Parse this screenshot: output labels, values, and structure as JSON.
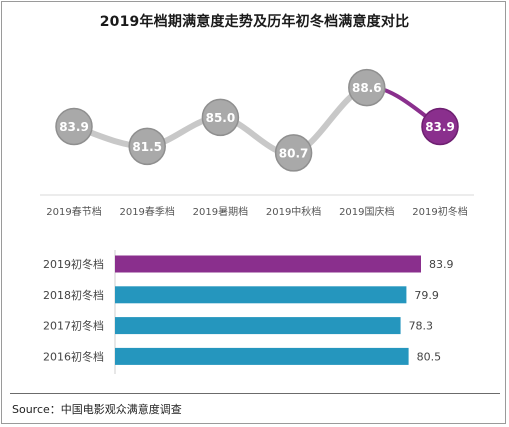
{
  "title": "2019年档期满意度走势及历年初冬档满意度对比",
  "source": "Source：中国电影观众满意度调查",
  "colors": {
    "line": "#c8c8c8",
    "bubble": "#a9a9a9",
    "bubble_highlight": "#8a2f8d",
    "bar_highlight": "#8a2f8d",
    "bar": "#2596be"
  },
  "chart_data": [
    {
      "type": "line",
      "categories": [
        "2019春节档",
        "2019春季档",
        "2019暑期档",
        "2019中秋档",
        "2019国庆档",
        "2019初冬档"
      ],
      "values": [
        83.9,
        81.5,
        85.0,
        80.7,
        88.6,
        83.9
      ],
      "highlight_index": 5,
      "ylim": [
        79,
        90
      ],
      "grid": false
    },
    {
      "type": "bar",
      "orientation": "horizontal",
      "categories": [
        "2019初冬档",
        "2018初冬档",
        "2017初冬档",
        "2016初冬档"
      ],
      "values": [
        83.9,
        79.9,
        78.3,
        80.5
      ],
      "highlight_index": 0,
      "xlim": [
        0,
        90
      ],
      "grid": false
    }
  ]
}
